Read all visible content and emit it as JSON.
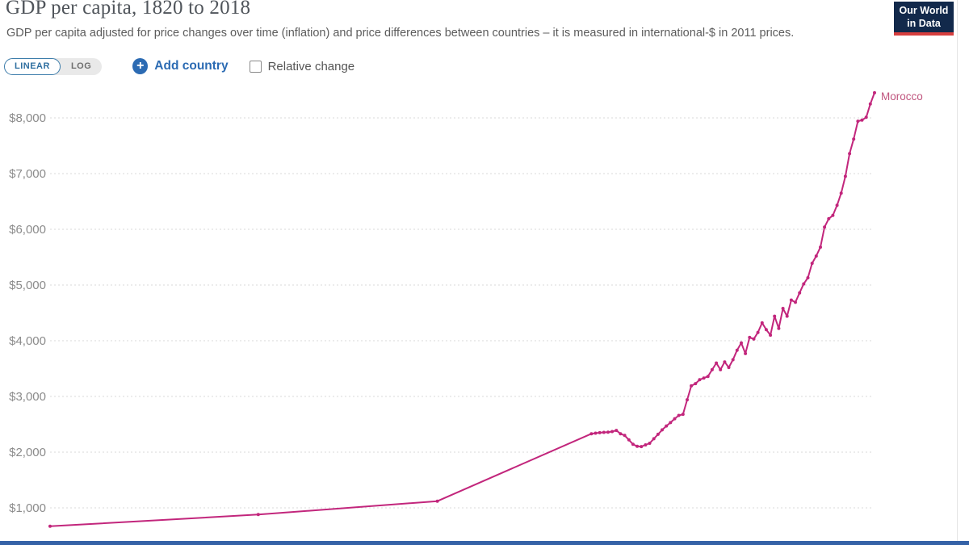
{
  "header": {
    "title": "GDP per capita, 1820 to 2018",
    "subtitle": "GDP per capita adjusted for price changes over time (inflation) and price differences between countries – it is measured in international-$ in 2011 prices."
  },
  "logo": {
    "line1": "Our World",
    "line2": "in Data",
    "bg_color": "#12294b",
    "accent_color": "#d63e3e"
  },
  "controls": {
    "linear_label": "LINEAR",
    "log_label": "LOG",
    "active_scale": "LINEAR",
    "add_country_label": "Add country",
    "relative_change_label": "Relative change",
    "relative_change_checked": false,
    "accent_blue": "#2c6bb3"
  },
  "bottom_bar_color": "#3562a7",
  "chart_data": {
    "type": "line",
    "title": "GDP per capita, 1820 to 2018",
    "xlim": [
      1820,
      2018
    ],
    "ylim": [
      600,
      8500
    ],
    "grid": "horizontal-dashed",
    "gridline_color": "#d9d9d9",
    "tick_label_color": "#8b8b8b",
    "y_ticks": [
      {
        "value": 1000,
        "label": "$1,000"
      },
      {
        "value": 2000,
        "label": "$2,000"
      },
      {
        "value": 3000,
        "label": "$3,000"
      },
      {
        "value": 4000,
        "label": "$4,000"
      },
      {
        "value": 5000,
        "label": "$5,000"
      },
      {
        "value": 6000,
        "label": "$6,000"
      },
      {
        "value": 7000,
        "label": "$7,000"
      },
      {
        "value": 8000,
        "label": "$8,000"
      }
    ],
    "series": [
      {
        "name": "Morocco",
        "color": "#c2267c",
        "label_color": "#c0557e",
        "points": [
          [
            1820,
            670
          ],
          [
            1870,
            880
          ],
          [
            1913,
            1120
          ],
          [
            1950,
            2330
          ],
          [
            1951,
            2340
          ],
          [
            1952,
            2350
          ],
          [
            1953,
            2355
          ],
          [
            1954,
            2360
          ],
          [
            1955,
            2370
          ],
          [
            1956,
            2390
          ],
          [
            1957,
            2330
          ],
          [
            1958,
            2300
          ],
          [
            1959,
            2220
          ],
          [
            1960,
            2140
          ],
          [
            1961,
            2105
          ],
          [
            1962,
            2100
          ],
          [
            1963,
            2130
          ],
          [
            1964,
            2160
          ],
          [
            1965,
            2240
          ],
          [
            1966,
            2320
          ],
          [
            1967,
            2400
          ],
          [
            1968,
            2470
          ],
          [
            1969,
            2530
          ],
          [
            1970,
            2600
          ],
          [
            1971,
            2660
          ],
          [
            1972,
            2680
          ],
          [
            1973,
            2940
          ],
          [
            1974,
            3190
          ],
          [
            1975,
            3230
          ],
          [
            1976,
            3300
          ],
          [
            1977,
            3330
          ],
          [
            1978,
            3360
          ],
          [
            1979,
            3480
          ],
          [
            1980,
            3600
          ],
          [
            1981,
            3480
          ],
          [
            1982,
            3620
          ],
          [
            1983,
            3520
          ],
          [
            1984,
            3660
          ],
          [
            1985,
            3830
          ],
          [
            1986,
            3960
          ],
          [
            1987,
            3770
          ],
          [
            1988,
            4060
          ],
          [
            1989,
            4030
          ],
          [
            1990,
            4150
          ],
          [
            1991,
            4320
          ],
          [
            1992,
            4200
          ],
          [
            1993,
            4100
          ],
          [
            1994,
            4440
          ],
          [
            1995,
            4220
          ],
          [
            1996,
            4580
          ],
          [
            1997,
            4440
          ],
          [
            1998,
            4730
          ],
          [
            1999,
            4690
          ],
          [
            2000,
            4860
          ],
          [
            2001,
            5020
          ],
          [
            2002,
            5130
          ],
          [
            2003,
            5390
          ],
          [
            2004,
            5520
          ],
          [
            2005,
            5680
          ],
          [
            2006,
            6040
          ],
          [
            2007,
            6190
          ],
          [
            2008,
            6250
          ],
          [
            2009,
            6430
          ],
          [
            2010,
            6650
          ],
          [
            2011,
            6950
          ],
          [
            2012,
            7360
          ],
          [
            2013,
            7620
          ],
          [
            2014,
            7940
          ],
          [
            2015,
            7960
          ],
          [
            2016,
            8010
          ],
          [
            2017,
            8250
          ],
          [
            2018,
            8450
          ]
        ]
      }
    ]
  }
}
